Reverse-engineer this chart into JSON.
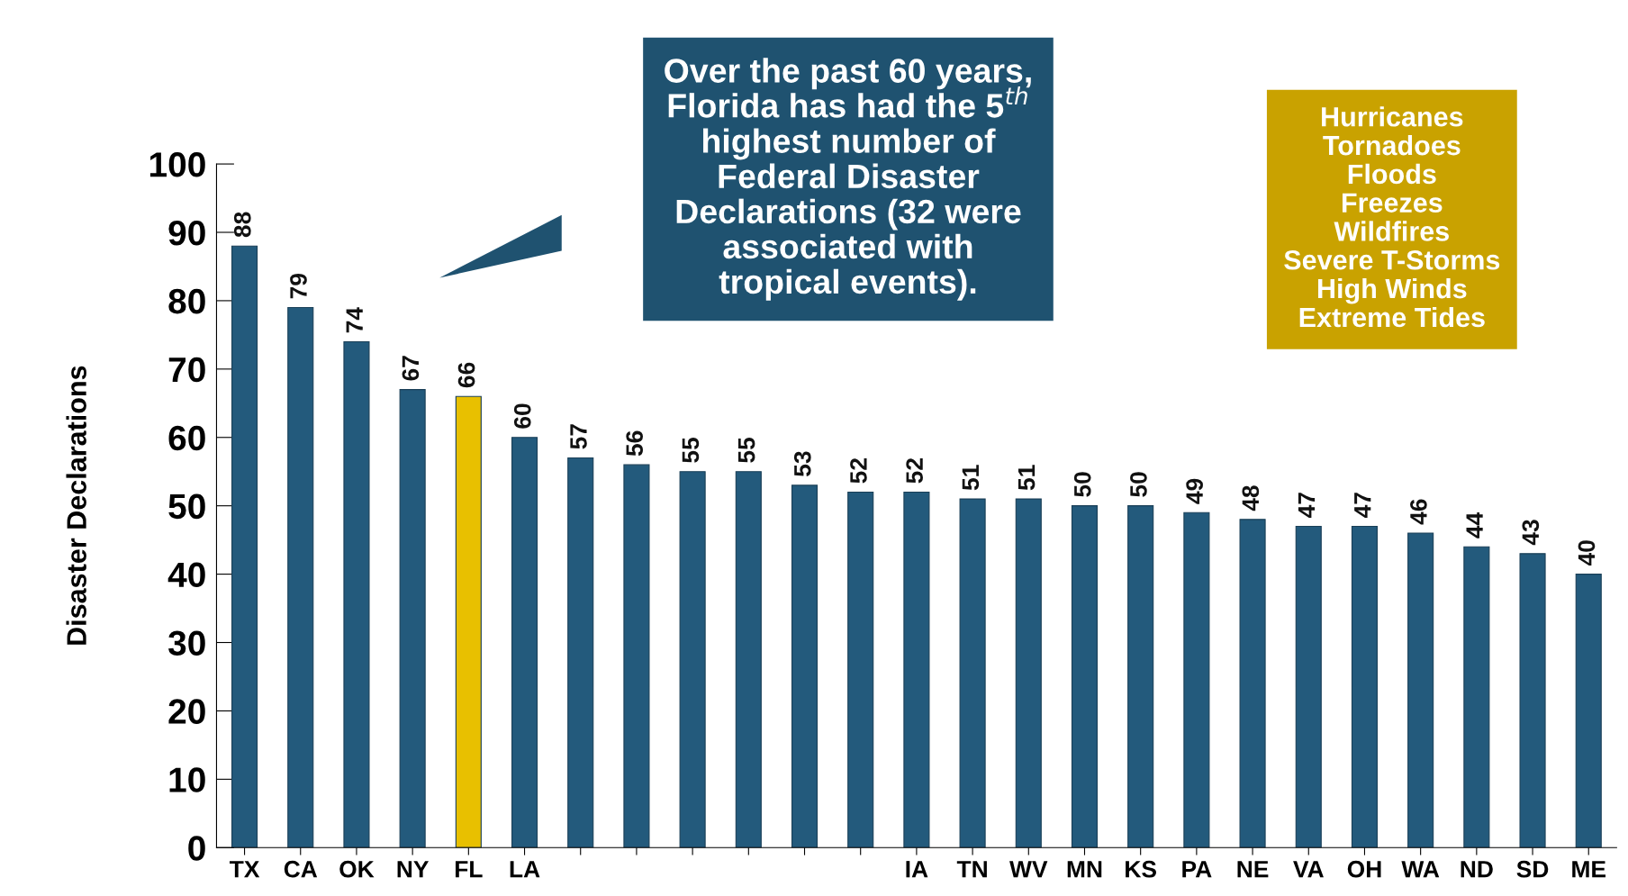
{
  "chart_data": {
    "type": "bar",
    "ylabel": "Disaster Declarations",
    "categories": [
      "TX",
      "CA",
      "OK",
      "NY",
      "FL",
      "LA",
      null,
      null,
      null,
      null,
      null,
      null,
      "IA",
      "TN",
      "WV",
      "MN",
      "KS",
      "PA",
      "NE",
      "VA",
      "OH",
      "WA",
      "ND",
      "SD",
      "ME"
    ],
    "values": [
      88,
      79,
      74,
      67,
      66,
      60,
      57,
      56,
      55,
      55,
      53,
      52,
      52,
      51,
      51,
      50,
      50,
      49,
      48,
      47,
      47,
      46,
      44,
      43,
      40
    ],
    "colors": [
      "#235a7c",
      "#235a7c",
      "#235a7c",
      "#235a7c",
      "#e8c000",
      "#235a7c",
      "#235a7c",
      "#235a7c",
      "#235a7c",
      "#235a7c",
      "#235a7c",
      "#235a7c",
      "#235a7c",
      "#235a7c",
      "#235a7c",
      "#235a7c",
      "#235a7c",
      "#235a7c",
      "#235a7c",
      "#235a7c",
      "#235a7c",
      "#235a7c",
      "#235a7c",
      "#235a7c",
      "#235a7c"
    ],
    "ylim": [
      0,
      100
    ],
    "yticks": [
      0,
      10,
      20,
      30,
      40,
      50,
      60,
      70,
      80,
      90,
      100
    ],
    "data_labels": true,
    "grid": false,
    "annotations": [
      "Over the past 60 years,\nFlorida has had the 5$^{th}$\nhighest number of\nFederal Disaster\nDeclarations (32 were\nassociated with\ntropical events).",
      "Hurricanes\nTornadoes\nFloods\nFreezes\nWildfires\nSevere T-Storms\nHigh Winds\nExtreme Tides"
    ]
  }
}
